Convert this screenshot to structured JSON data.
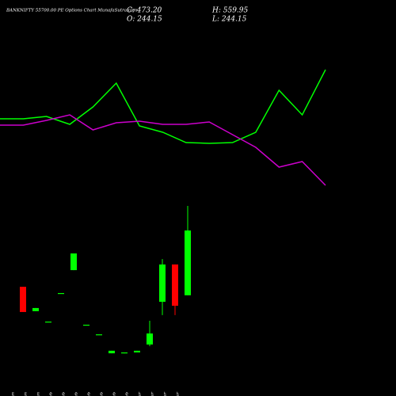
{
  "chart_data": [
    {
      "type": "candlestick",
      "title": "BANKNIFTY 55700.00 PE Options Chart MunafaSutra.com",
      "stats": [
        "C: 473.20",
        "H: 559.95",
        "O: 244.15",
        "L: 244.15"
      ],
      "categories": [
        "27 Jan",
        "28 Jan",
        "29 Jan",
        "01 Feb",
        "02 Feb",
        "03 Feb",
        "06 Feb",
        "25 Feb",
        "26 Feb",
        "27 Feb",
        "03 Mar",
        "04 Mar",
        "05 Mar",
        "06 Mar"
      ],
      "open": [
        274,
        188,
        151,
        252,
        333,
        140,
        106,
        39,
        39,
        42,
        70,
        221,
        353,
        244.15
      ],
      "high": [
        274,
        199,
        151,
        252,
        392,
        140,
        106,
        48,
        42,
        48,
        154,
        372,
        353,
        559.95
      ],
      "low": [
        185,
        188,
        151,
        252,
        333,
        140,
        106,
        39,
        39,
        42,
        64,
        174,
        174,
        244.15
      ],
      "close": [
        185,
        199,
        151,
        252,
        392,
        140,
        106,
        48,
        42,
        48,
        109,
        353,
        207,
        473.2
      ],
      "up_color": "#00ff00",
      "down_color": "#ff0000",
      "ylim": [
        0,
        574
      ]
    },
    {
      "type": "line",
      "series": [
        {
          "color": "#00ff00",
          "values": [
            100,
            100,
            103,
            93,
            115,
            145,
            91,
            83,
            70,
            69,
            70,
            83,
            136,
            105,
            162
          ]
        },
        {
          "color": "#cc00cc",
          "values": [
            92,
            92,
            98,
            105,
            86,
            95,
            97,
            93,
            93,
            96,
            80,
            64,
            39,
            46,
            16
          ]
        }
      ],
      "ylim": [
        0,
        200
      ]
    }
  ]
}
